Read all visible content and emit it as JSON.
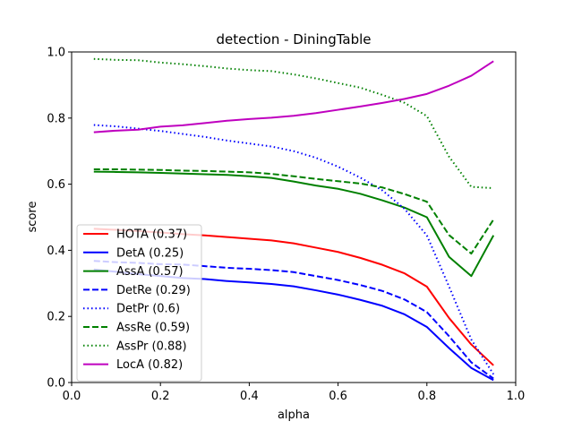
{
  "chart_data": {
    "type": "line",
    "title": "detection - DiningTable",
    "xlabel": "alpha",
    "ylabel": "score",
    "xlim": [
      0.0,
      1.0
    ],
    "ylim": [
      0.0,
      1.0
    ],
    "xticks": [
      "0.0",
      "0.2",
      "0.4",
      "0.6",
      "0.8",
      "1.0"
    ],
    "yticks": [
      "0.0",
      "0.2",
      "0.4",
      "0.6",
      "0.8",
      "1.0"
    ],
    "grid": false,
    "legend_position": "lower-left",
    "x": [
      0.05,
      0.1,
      0.15,
      0.2,
      0.25,
      0.3,
      0.35,
      0.4,
      0.45,
      0.5,
      0.55,
      0.6,
      0.65,
      0.7,
      0.75,
      0.8,
      0.85,
      0.9,
      0.95
    ],
    "series": [
      {
        "name": "HOTA (0.37)",
        "color": "#ff0000",
        "dash": "solid",
        "values": [
          0.465,
          0.462,
          0.458,
          0.454,
          0.449,
          0.445,
          0.44,
          0.435,
          0.43,
          0.421,
          0.408,
          0.395,
          0.377,
          0.356,
          0.33,
          0.29,
          0.195,
          0.115,
          0.052
        ]
      },
      {
        "name": "DetA (0.25)",
        "color": "#0000ff",
        "dash": "solid",
        "values": [
          0.342,
          0.335,
          0.328,
          0.322,
          0.316,
          0.313,
          0.307,
          0.303,
          0.298,
          0.291,
          0.279,
          0.266,
          0.25,
          0.232,
          0.206,
          0.168,
          0.104,
          0.044,
          0.007
        ]
      },
      {
        "name": "AssA (0.57)",
        "color": "#008000",
        "dash": "solid",
        "values": [
          0.638,
          0.637,
          0.636,
          0.634,
          0.632,
          0.63,
          0.628,
          0.624,
          0.619,
          0.608,
          0.596,
          0.586,
          0.571,
          0.551,
          0.529,
          0.5,
          0.38,
          0.322,
          0.445
        ]
      },
      {
        "name": "DetRe (0.29)",
        "color": "#0000ff",
        "dash": "dashed",
        "values": [
          0.368,
          0.364,
          0.362,
          0.358,
          0.357,
          0.352,
          0.347,
          0.344,
          0.34,
          0.334,
          0.322,
          0.31,
          0.295,
          0.277,
          0.251,
          0.213,
          0.14,
          0.061,
          0.012
        ]
      },
      {
        "name": "DetPr (0.6)",
        "color": "#0000ff",
        "dash": "dotted",
        "values": [
          0.779,
          0.775,
          0.768,
          0.761,
          0.752,
          0.743,
          0.732,
          0.723,
          0.714,
          0.7,
          0.68,
          0.653,
          0.62,
          0.581,
          0.525,
          0.445,
          0.29,
          0.13,
          0.025
        ]
      },
      {
        "name": "AssRe (0.59)",
        "color": "#008000",
        "dash": "dashed",
        "values": [
          0.645,
          0.645,
          0.644,
          0.643,
          0.641,
          0.64,
          0.638,
          0.636,
          0.631,
          0.624,
          0.616,
          0.609,
          0.602,
          0.59,
          0.57,
          0.547,
          0.446,
          0.39,
          0.493
        ]
      },
      {
        "name": "AssPr (0.88)",
        "color": "#008000",
        "dash": "dotted",
        "values": [
          0.979,
          0.976,
          0.975,
          0.968,
          0.963,
          0.957,
          0.95,
          0.945,
          0.942,
          0.932,
          0.92,
          0.906,
          0.892,
          0.87,
          0.846,
          0.806,
          0.683,
          0.592,
          0.588
        ]
      },
      {
        "name": "LocA (0.82)",
        "color": "#bf00bf",
        "dash": "solid",
        "values": [
          0.757,
          0.762,
          0.765,
          0.774,
          0.778,
          0.785,
          0.792,
          0.797,
          0.801,
          0.807,
          0.815,
          0.825,
          0.835,
          0.846,
          0.858,
          0.873,
          0.898,
          0.928,
          0.972
        ]
      }
    ]
  }
}
